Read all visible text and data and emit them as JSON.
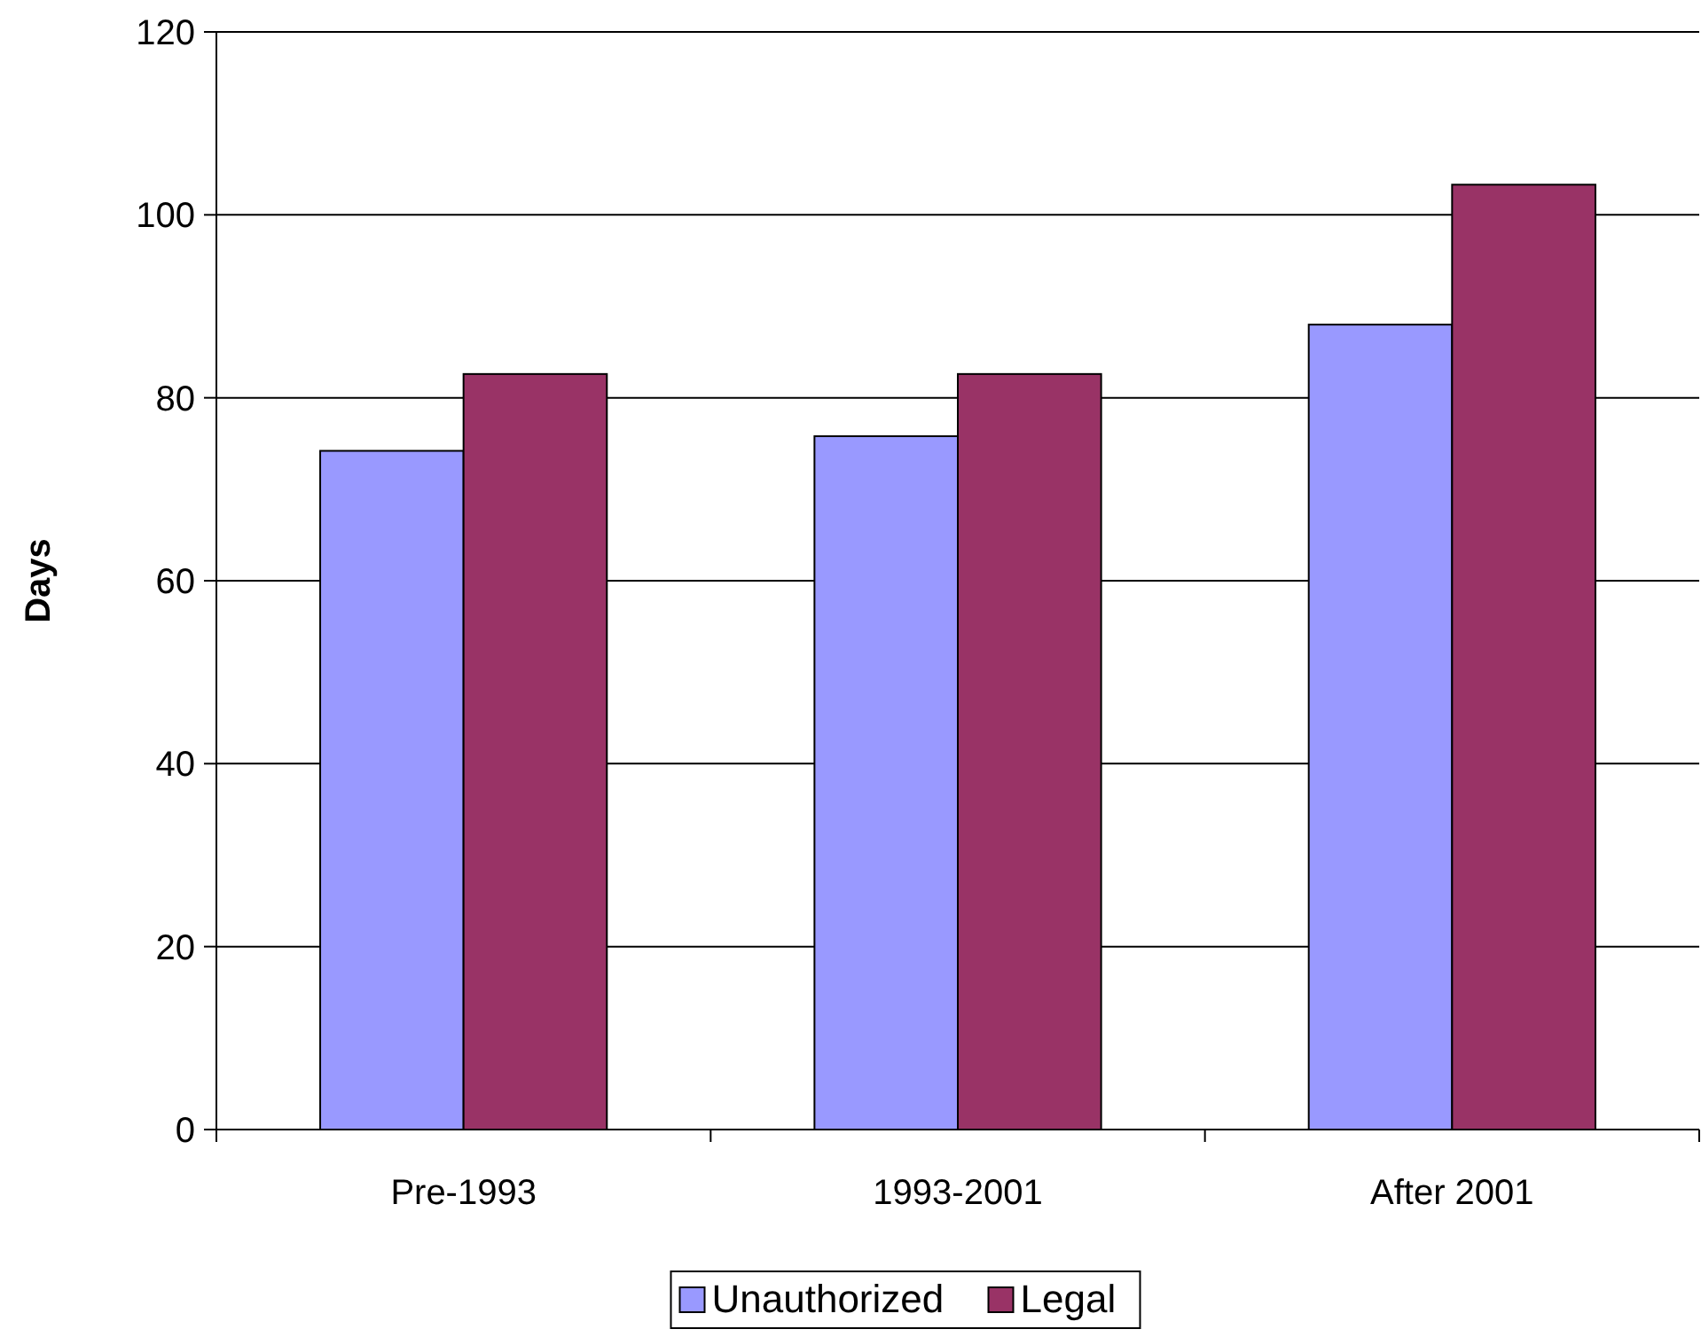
{
  "chart_data": {
    "type": "bar",
    "ylabel": "Days",
    "categories": [
      "Pre-1993",
      "1993-2001",
      "After 2001"
    ],
    "series": [
      {
        "name": "Unauthorized",
        "color": "#9999ff",
        "values": [
          74.2,
          75.8,
          88.0
        ]
      },
      {
        "name": "Legal",
        "color": "#993366",
        "values": [
          82.6,
          82.6,
          103.3
        ]
      }
    ],
    "ylim": [
      0,
      120
    ],
    "yticks": [
      0,
      20,
      40,
      60,
      80,
      100,
      120
    ],
    "grid": "y",
    "legend": "bottom"
  }
}
